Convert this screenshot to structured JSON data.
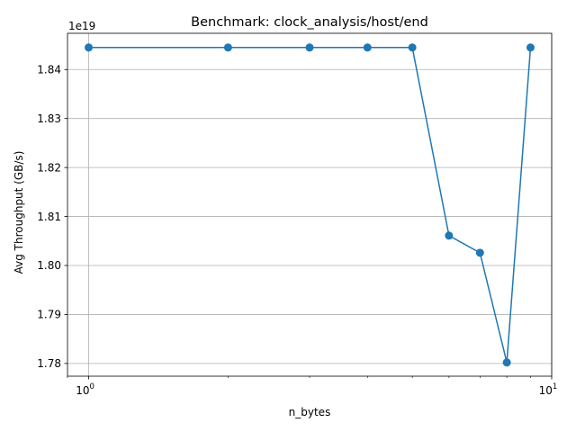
{
  "chart_data": {
    "type": "line",
    "title": "Benchmark: clock_analysis/host/end",
    "xlabel": "n_bytes",
    "ylabel": "Avg Throughput (GB/s)",
    "x_scale": "log",
    "xlim": [
      0.9,
      10
    ],
    "x_ticks": [
      {
        "value": 1,
        "label": "10",
        "exp": "0"
      },
      {
        "value": 10,
        "label": "10",
        "exp": "1"
      }
    ],
    "y_offset_label": "1e19",
    "y_multiplier": 1e+19,
    "ylim": [
      1.7774,
      1.8474
    ],
    "y_ticks": [
      {
        "value": 1.78,
        "label": "1.78"
      },
      {
        "value": 1.79,
        "label": "1.79"
      },
      {
        "value": 1.8,
        "label": "1.80"
      },
      {
        "value": 1.81,
        "label": "1.81"
      },
      {
        "value": 1.82,
        "label": "1.82"
      },
      {
        "value": 1.83,
        "label": "1.83"
      },
      {
        "value": 1.84,
        "label": "1.84"
      }
    ],
    "grid": true,
    "legend": "none",
    "series": [
      {
        "color": "#1f77b4",
        "marker": "circle",
        "x": [
          1,
          2,
          3,
          4,
          5,
          6,
          7,
          8,
          9
        ],
        "y": [
          1.8445,
          1.8445,
          1.8445,
          1.8445,
          1.8445,
          1.8061,
          1.8026,
          1.7802,
          1.8445
        ]
      }
    ]
  }
}
